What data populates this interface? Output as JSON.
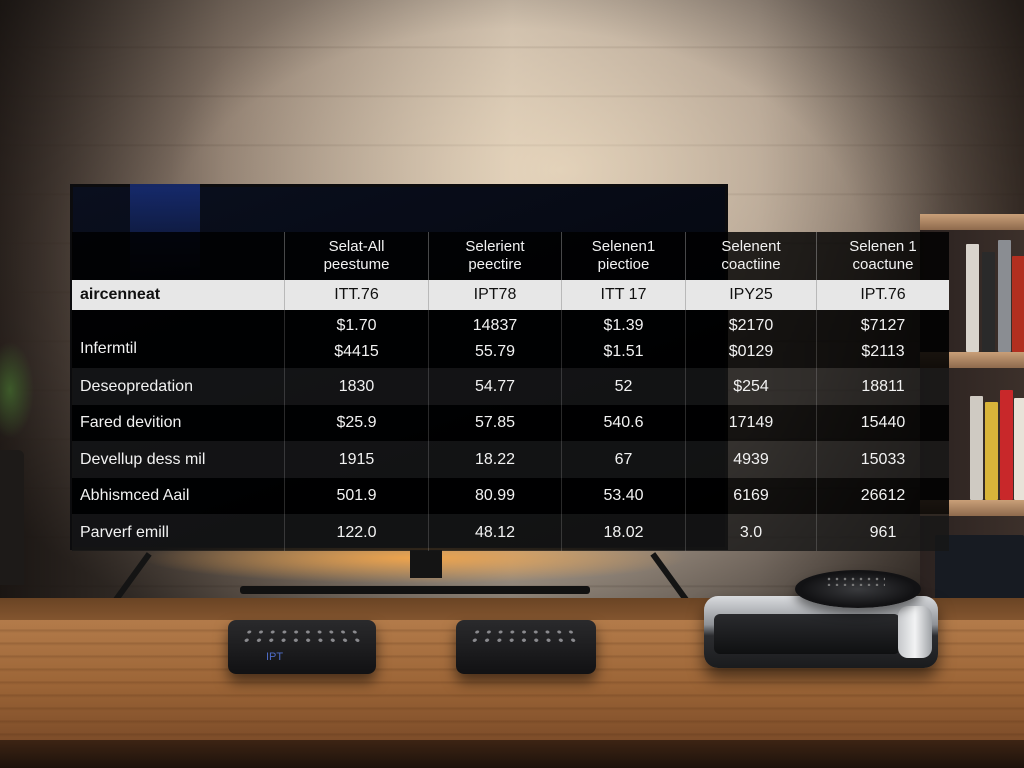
{
  "table": {
    "headers": [
      {
        "line1": "Selat-All",
        "line2": "peestume"
      },
      {
        "line1": "Selerient",
        "line2": "peectire"
      },
      {
        "line1": "Selenen1",
        "line2": "piectioe"
      },
      {
        "line1": "Selenent",
        "line2": "coactiine"
      },
      {
        "line1": "Selenen 1",
        "line2": "coactune"
      }
    ],
    "highlight_row": {
      "label": "aircenneat",
      "values": [
        "ITT.76",
        "IPT78",
        "ITT 17",
        "IPY25",
        "IPT.76"
      ]
    },
    "rows": [
      {
        "label": "Infermtil",
        "values": [
          [
            "$1.70",
            "$4415"
          ],
          [
            "14837",
            "55.79"
          ],
          [
            "$1.39",
            "$1.51"
          ],
          [
            "$2170",
            "$0129"
          ],
          [
            "$7127",
            "$2113"
          ]
        ]
      },
      {
        "label": "Deseopredation",
        "values": [
          [
            "1830"
          ],
          [
            "54.77"
          ],
          [
            "52"
          ],
          [
            "$254"
          ],
          [
            "18811"
          ]
        ]
      },
      {
        "label": "Fared devition",
        "values": [
          [
            "$25.9"
          ],
          [
            "57.85"
          ],
          [
            "540.6"
          ],
          [
            "17149"
          ],
          [
            "15440"
          ]
        ]
      },
      {
        "label": "Devellup dess mil",
        "values": [
          [
            "1915"
          ],
          [
            "18.22"
          ],
          [
            "67"
          ],
          [
            "4939"
          ],
          [
            "15033"
          ]
        ]
      },
      {
        "label": "Abhismced Aail",
        "values": [
          [
            "501.9"
          ],
          [
            "80.99"
          ],
          [
            "53.40"
          ],
          [
            "6169"
          ],
          [
            "26612"
          ]
        ]
      },
      {
        "label": "Parverf emill",
        "values": [
          [
            "122.0"
          ],
          [
            "48.12"
          ],
          [
            "18.02"
          ],
          [
            "3.0"
          ],
          [
            "961"
          ]
        ]
      }
    ]
  },
  "devices": {
    "remote_logo": "IPT"
  },
  "colors": {
    "highlight_row_bg": "#e7e7e7",
    "table_bg": "#000000",
    "remote_logo": "#4e6cc7",
    "tv_backlight": "#ffaa46"
  }
}
